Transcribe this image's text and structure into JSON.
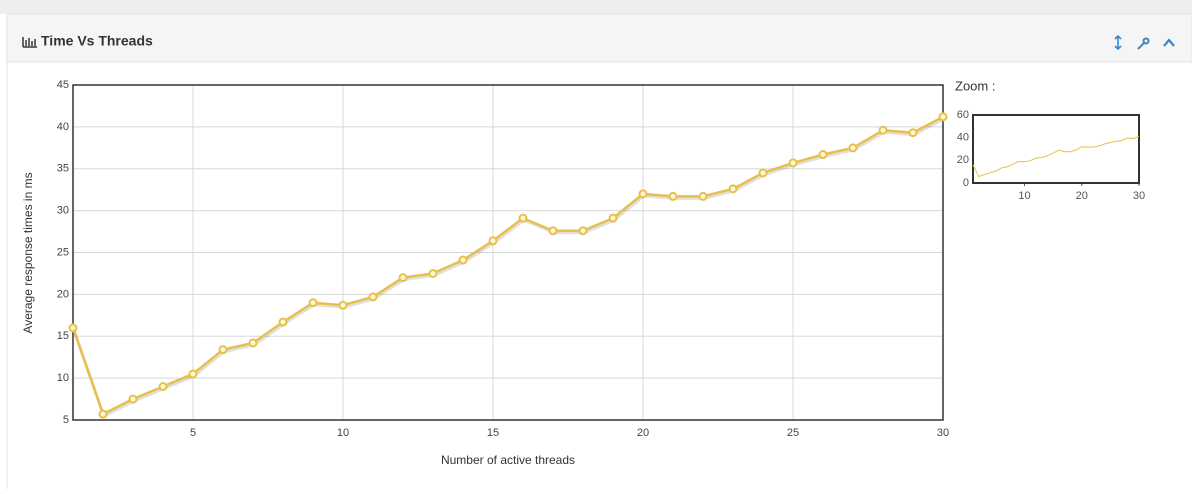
{
  "panel_title": "Time Vs Threads",
  "chart_data": {
    "type": "line",
    "x": [
      1,
      2,
      3,
      4,
      5,
      6,
      7,
      8,
      9,
      10,
      11,
      12,
      13,
      14,
      15,
      16,
      17,
      18,
      19,
      20,
      21,
      22,
      23,
      24,
      25,
      26,
      27,
      28,
      29,
      30
    ],
    "series": [
      {
        "name": "Average response times",
        "color": "#e6c04a",
        "values": [
          16,
          5.7,
          7.5,
          9,
          10.5,
          13.4,
          14.2,
          16.7,
          19,
          18.7,
          19.7,
          22,
          22.5,
          24.1,
          26.4,
          29.1,
          27.6,
          27.6,
          29.1,
          32,
          31.7,
          31.7,
          32.6,
          34.5,
          35.7,
          36.7,
          37.5,
          39.6,
          39.3,
          41.2
        ]
      }
    ],
    "xlabel": "Number of active threads",
    "ylabel": "Average response times in ms",
    "xlim": [
      1,
      30
    ],
    "xticks": [
      5,
      10,
      15,
      20,
      25,
      30
    ],
    "ylim": [
      5,
      45
    ],
    "yticks": [
      5,
      10,
      15,
      20,
      25,
      30,
      35,
      40,
      45
    ],
    "grid": true,
    "zoom": {
      "title": "Zoom :",
      "xlim": [
        1,
        30
      ],
      "xticks": [
        10,
        20,
        30
      ],
      "ylim": [
        0,
        60
      ],
      "yticks": [
        0,
        20,
        40,
        60
      ]
    }
  }
}
